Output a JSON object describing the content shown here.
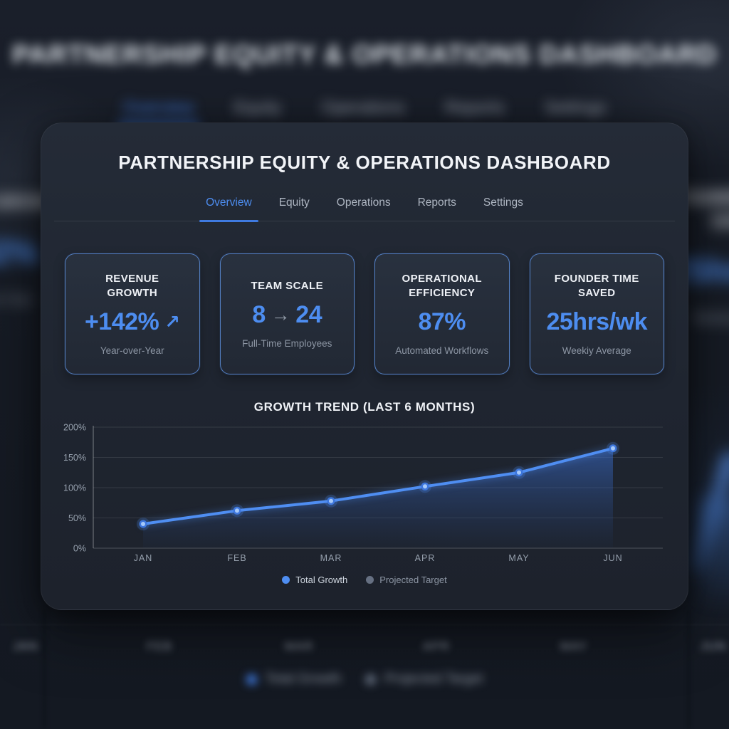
{
  "header": {
    "title": "PARTNERSHIP EQUITY & OPERATIONS DASHBOARD"
  },
  "tabs": [
    {
      "label": "Overview",
      "active": true
    },
    {
      "label": "Equity",
      "active": false
    },
    {
      "label": "Operations",
      "active": false
    },
    {
      "label": "Reports",
      "active": false
    },
    {
      "label": "Settings",
      "active": false
    }
  ],
  "stats": [
    {
      "title": "REVENUE GROWTH",
      "value": "+142%",
      "trend_icon": "↗",
      "subtitle": "Year-over-Year"
    },
    {
      "title": "TEAM SCALE",
      "value_from": "8",
      "arrow_icon": "→",
      "value_to": "24",
      "subtitle": "Full-Time Employees"
    },
    {
      "title": "OPERATIONAL EFFICIENCY",
      "value": "87%",
      "subtitle": "Automated Workflows"
    },
    {
      "title": "FOUNDER TIME SAVED",
      "value": "25hrs/wk",
      "subtitle": "Weekiy Average"
    }
  ],
  "chart": {
    "title": "GROWTH TREND (LAST 6 MONTHS)",
    "legend": [
      {
        "label": "Total Growth",
        "color": "#4f8ef2"
      },
      {
        "label": "Projected Target",
        "color": "#667082"
      }
    ]
  },
  "chart_data": {
    "type": "line",
    "title": "GROWTH TREND (LAST 6 MONTHS)",
    "x": [
      "JAN",
      "FEB",
      "MAR",
      "APR",
      "MAY",
      "JUN"
    ],
    "series": [
      {
        "name": "Total Growth",
        "values": [
          40,
          62,
          78,
          102,
          125,
          165
        ]
      }
    ],
    "ylim": [
      0,
      200
    ],
    "y_ticks": [
      0,
      50,
      100,
      150,
      200
    ],
    "y_tick_labels": [
      "0%",
      "50%",
      "100%",
      "150%",
      "200%"
    ],
    "grid": true,
    "area_fill": true,
    "line_color": "#4f8ef2",
    "legend_position": "bottom"
  },
  "colors": {
    "accent_blue": "#4d8df0",
    "underline_blue": "#3f7ae0",
    "card_border_blue": "#5c8edb",
    "muted_text": "#8d96a4",
    "card_bg": "#1f2530",
    "page_bg": "#161b24"
  }
}
